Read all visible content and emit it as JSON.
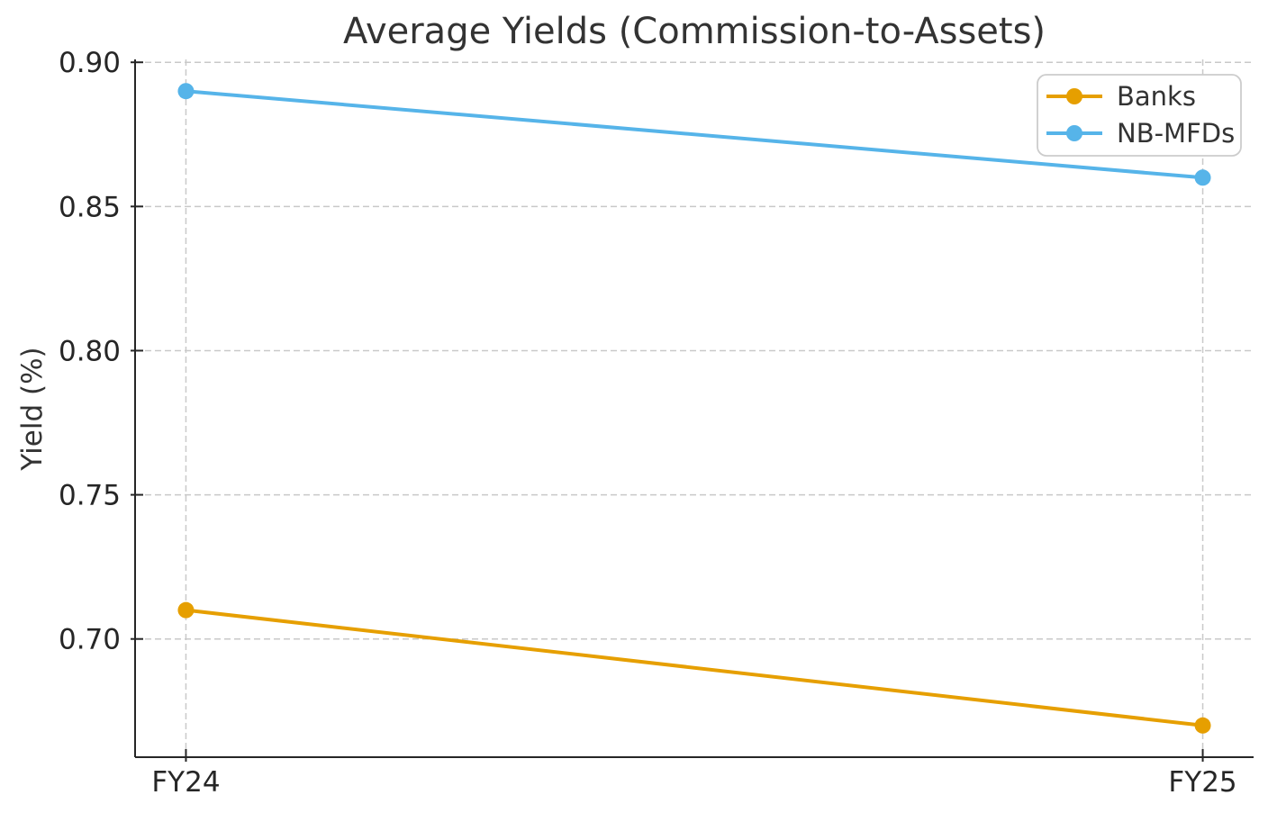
{
  "figure": {
    "title": "Average Yields (Commission-to-Assets)"
  },
  "chart_data": {
    "type": "line",
    "title": "Average Yields (Commission-to-Assets)",
    "xlabel": "",
    "ylabel": "Yield (%)",
    "categories": [
      "FY24",
      "FY25"
    ],
    "series": [
      {
        "name": "Banks",
        "values": [
          0.71,
          0.67
        ],
        "color": "#E69F00"
      },
      {
        "name": "NB-MFDs",
        "values": [
          0.89,
          0.86
        ],
        "color": "#56B4E9"
      }
    ],
    "ylim": [
      0.659,
      0.901
    ],
    "yticks": [
      0.7,
      0.75,
      0.8,
      0.85,
      0.9
    ],
    "ytick_labels": [
      "0.70",
      "0.75",
      "0.80",
      "0.85",
      "0.90"
    ],
    "grid": true,
    "grid_style": "dashed",
    "legend_position": "upper right"
  },
  "style": {
    "background": "#ffffff",
    "grid_color": "#c9c9c9",
    "spine_color": "#262626",
    "tick_color": "#262626",
    "title_color": "#333333",
    "legend_border_color": "#cccccc",
    "legend_background": "#ffffff"
  }
}
